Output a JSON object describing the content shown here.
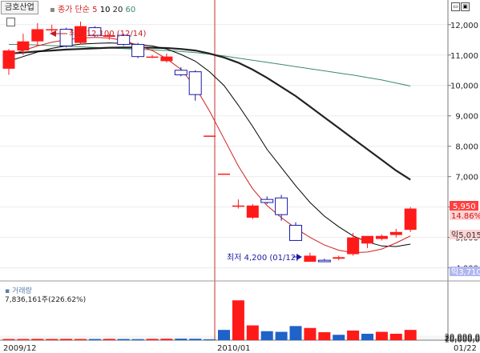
{
  "header": {
    "stock_name": "금호산업",
    "ma_label": "종가 단순",
    "ma_periods": [
      "5",
      "10",
      "20",
      "60"
    ],
    "ma_colors": [
      "#d02020",
      "#000000",
      "#222222",
      "#3a8a6a"
    ]
  },
  "annotations": {
    "high": "최고 12,100 (12/14)",
    "low": "최저 4,200 (01/12)"
  },
  "price_axis": {
    "ticks": [
      "12,000",
      "11,000",
      "10,000",
      "9,000",
      "8,000",
      "7,000",
      "6,000",
      "5,000",
      "4,000"
    ],
    "current_price": "5,950",
    "change_pct": "14.86%",
    "upper_limit": "익5,015",
    "lower_limit": "익3,710"
  },
  "volume_panel": {
    "title": "거래량",
    "current": "7,836,161주(226.62%)",
    "ticks": [
      "30,000,0",
      "20,000,0",
      "10,000,0"
    ]
  },
  "x_axis": {
    "labels": [
      "2009/12",
      "2010/01",
      "01/22"
    ]
  },
  "chart_data": {
    "type": "candlestick",
    "ylim": [
      3700,
      12600
    ],
    "volume_ylim": [
      0,
      33000000
    ],
    "up_color": "#ff1a1a",
    "down_color": "#1a1aa8",
    "candles": [
      {
        "o": 10550,
        "h": 11200,
        "l": 10350,
        "c": 11150
      },
      {
        "o": 11150,
        "h": 11700,
        "l": 11000,
        "c": 11450
      },
      {
        "o": 11450,
        "h": 12050,
        "l": 11300,
        "c": 11850
      },
      {
        "o": 11850,
        "h": 12000,
        "l": 11750,
        "c": 11850
      },
      {
        "o": 11850,
        "h": 11900,
        "l": 11250,
        "c": 11300
      },
      {
        "o": 11400,
        "h": 12100,
        "l": 11350,
        "c": 11950
      },
      {
        "o": 11900,
        "h": 11950,
        "l": 11600,
        "c": 11650
      },
      {
        "o": 11600,
        "h": 11700,
        "l": 11500,
        "c": 11650
      },
      {
        "o": 11650,
        "h": 11700,
        "l": 11300,
        "c": 11350
      },
      {
        "o": 11350,
        "h": 11400,
        "l": 10900,
        "c": 10950
      },
      {
        "o": 10950,
        "h": 11000,
        "l": 10900,
        "c": 10950
      },
      {
        "o": 10800,
        "h": 11050,
        "l": 10750,
        "c": 10950
      },
      {
        "o": 10500,
        "h": 10600,
        "l": 10300,
        "c": 10350
      },
      {
        "o": 10450,
        "h": 10500,
        "l": 9500,
        "c": 9700
      },
      {
        "o": 8350,
        "h": 8350,
        "l": 8350,
        "c": 8350
      },
      {
        "o": 7100,
        "h": 7100,
        "l": 7100,
        "c": 7100
      },
      {
        "o": 6050,
        "h": 6250,
        "l": 5950,
        "c": 6050
      },
      {
        "o": 5650,
        "h": 6100,
        "l": 5600,
        "c": 6050
      },
      {
        "o": 6250,
        "h": 6350,
        "l": 6100,
        "c": 6150
      },
      {
        "o": 6300,
        "h": 6400,
        "l": 5550,
        "c": 5750
      },
      {
        "o": 5400,
        "h": 5500,
        "l": 4900,
        "c": 4900
      },
      {
        "o": 4200,
        "h": 4500,
        "l": 4200,
        "c": 4400
      },
      {
        "o": 4250,
        "h": 4300,
        "l": 4200,
        "c": 4200
      },
      {
        "o": 4300,
        "h": 4400,
        "l": 4250,
        "c": 4350
      },
      {
        "o": 4450,
        "h": 5150,
        "l": 4400,
        "c": 5000
      },
      {
        "o": 4800,
        "h": 5000,
        "l": 4650,
        "c": 5050
      },
      {
        "o": 4950,
        "h": 5100,
        "l": 4900,
        "c": 5050
      },
      {
        "o": 5080,
        "h": 5280,
        "l": 5000,
        "c": 5180
      },
      {
        "o": 5250,
        "h": 6000,
        "l": 5180,
        "c": 5950
      }
    ],
    "volume": [
      900000,
      900000,
      1000000,
      900000,
      1000000,
      900000,
      900000,
      1000000,
      900000,
      800000,
      1000000,
      1100000,
      1200000,
      1100000,
      700000,
      8000000,
      31000000,
      11500000,
      7000000,
      6500000,
      11000000,
      9500000,
      6200000,
      4200000,
      7500000,
      5000000,
      6500000,
      5000000,
      8000000
    ],
    "volume_up": [
      true,
      true,
      true,
      true,
      true,
      true,
      false,
      true,
      false,
      false,
      true,
      true,
      false,
      false,
      false,
      false,
      true,
      true,
      false,
      false,
      false,
      true,
      true,
      false,
      true,
      false,
      true,
      true,
      true
    ],
    "ma5": [
      11000,
      11150,
      11300,
      11420,
      11500,
      11560,
      11580,
      11560,
      11480,
      11320,
      11150,
      10880,
      10530,
      9950,
      9150,
      8250,
      7350,
      6600,
      6050,
      5650,
      5300,
      5000,
      4750,
      4580,
      4500,
      4520,
      4620,
      4820,
      5050
    ],
    "ma10": [
      10800,
      10950,
      11100,
      11220,
      11300,
      11360,
      11380,
      11400,
      11380,
      11350,
      11300,
      11200,
      11020,
      10800,
      10450,
      10000,
      9350,
      8650,
      7900,
      7300,
      6700,
      6150,
      5700,
      5350,
      5050,
      4850,
      4720,
      4700,
      4780
    ],
    "ma20": [
      11050,
      11080,
      11120,
      11150,
      11180,
      11200,
      11220,
      11240,
      11250,
      11250,
      11240,
      11230,
      11200,
      11150,
      11050,
      10920,
      10750,
      10520,
      10250,
      9950,
      9650,
      9300,
      8950,
      8600,
      8250,
      7900,
      7550,
      7200,
      6900
    ],
    "ma60": [
      11350,
      11350,
      11330,
      11310,
      11290,
      11270,
      11250,
      11230,
      11210,
      11190,
      11170,
      11150,
      11120,
      11080,
      11030,
      10970,
      10900,
      10830,
      10760,
      10690,
      10620,
      10550,
      10480,
      10410,
      10340,
      10260,
      10180,
      10080,
      9980
    ]
  }
}
